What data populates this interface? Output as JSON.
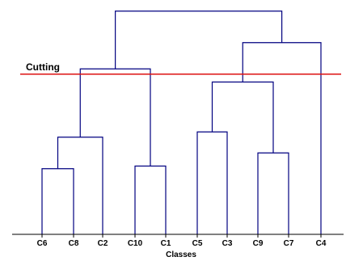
{
  "chart_data": {
    "type": "dendrogram",
    "xlabel": "Classes",
    "leaves": [
      "C6",
      "C8",
      "C2",
      "C10",
      "C1",
      "C5",
      "C3",
      "C9",
      "C7",
      "C4"
    ],
    "merges": [
      {
        "children": [
          "C6",
          "C8"
        ],
        "height": 2.5
      },
      {
        "children": [
          "C10",
          "C1"
        ],
        "height": 2.6
      },
      {
        "children": [
          "C9",
          "C7"
        ],
        "height": 3.1
      },
      {
        "children": [
          "C6+C8",
          "C2"
        ],
        "height": 3.7
      },
      {
        "children": [
          "C5",
          "C3"
        ],
        "height": 3.9
      },
      {
        "children": [
          "C5+C3",
          "C9+C7"
        ],
        "height": 5.8
      },
      {
        "children": [
          "C6+C8+C2",
          "C10+C1"
        ],
        "height": 6.3
      },
      {
        "children": [
          "C5+C3+C9+C7",
          "C4"
        ],
        "height": 7.3
      },
      {
        "children": [
          "C6+C8+C2+C10+C1",
          "C5+C3+C9+C7+C4"
        ],
        "height": 8.5
      }
    ],
    "cutting": {
      "label": "Cutting",
      "height": 6.1
    },
    "colors": {
      "dendrogram": "#000080",
      "cutting_line": "#dd1111",
      "axis": "#000000"
    }
  }
}
